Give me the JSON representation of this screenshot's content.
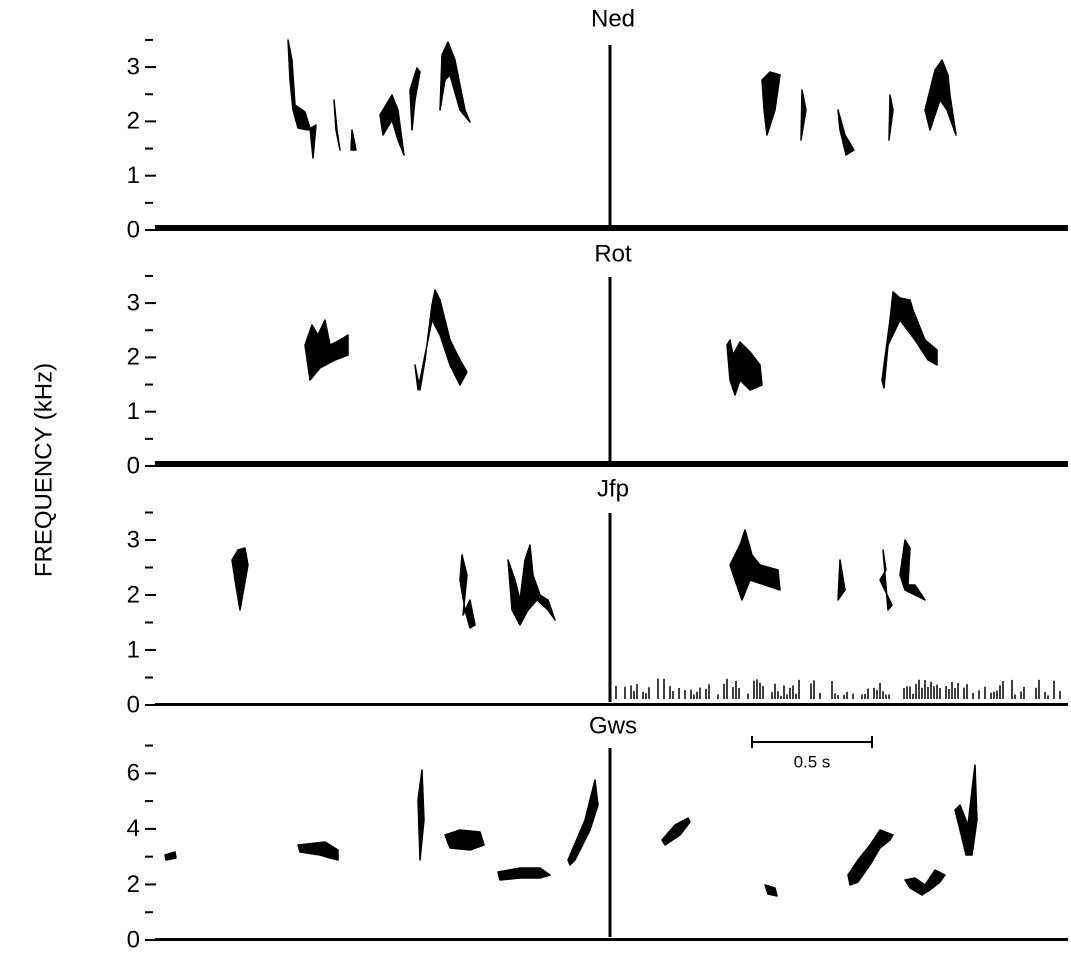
{
  "y_axis_label": "FREQUENCY   (kHz)",
  "scale_bar": "0.5 s",
  "chart_data": [
    {
      "type": "spectrogram",
      "title": "Ned",
      "ylim": [
        0,
        3.6
      ],
      "yticks": [
        0,
        1,
        2,
        3
      ],
      "minor_yticks": [
        0.5,
        1.5,
        2.5,
        3.5
      ]
    },
    {
      "type": "spectrogram",
      "title": "Rot",
      "ylim": [
        0,
        3.6
      ],
      "yticks": [
        0,
        1,
        2,
        3
      ],
      "minor_yticks": [
        0.5,
        1.5,
        2.5,
        3.5
      ]
    },
    {
      "type": "spectrogram",
      "title": "Jfp",
      "ylim": [
        0,
        3.6
      ],
      "yticks": [
        0,
        1,
        2,
        3
      ],
      "minor_yticks": [
        0.5,
        1.5,
        2.5,
        3.5
      ]
    },
    {
      "type": "spectrogram",
      "title": "Gws",
      "ylim": [
        0,
        7.2
      ],
      "yticks": [
        0,
        2,
        4,
        6
      ],
      "minor_yticks": [
        1,
        3,
        5,
        7
      ]
    }
  ]
}
